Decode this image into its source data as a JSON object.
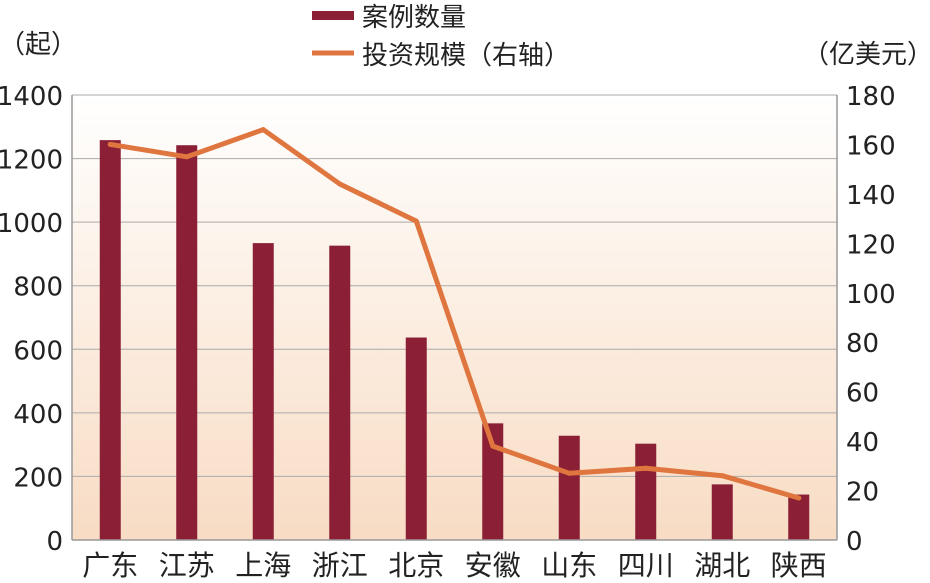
{
  "chart_data": {
    "type": "bar",
    "categories": [
      "广东",
      "江苏",
      "上海",
      "浙江",
      "北京",
      "安徽",
      "山东",
      "四川",
      "湖北",
      "陕西"
    ],
    "series": [
      {
        "name": "案例数量",
        "type": "bar",
        "axis": "left",
        "values": [
          1258,
          1242,
          934,
          926,
          637,
          367,
          328,
          303,
          175,
          143
        ]
      },
      {
        "name": "投资规模（右轴）",
        "type": "line",
        "axis": "right",
        "values": [
          160,
          155,
          166,
          144,
          129,
          38,
          27,
          29,
          26,
          17
        ]
      }
    ],
    "ylabel": "（起）",
    "ylabel_right": "（亿美元）",
    "ylim": [
      0,
      1400
    ],
    "ylim_right": [
      0,
      180
    ],
    "yticks": [
      0,
      200,
      400,
      600,
      800,
      1000,
      1200,
      1400
    ],
    "yticks_right": [
      0,
      20,
      40,
      60,
      80,
      100,
      120,
      140,
      160,
      180
    ],
    "grid": true,
    "legend_position": "top-center",
    "colors": {
      "bar": "#8b1f35",
      "line": "#e0763f",
      "grid": "#aaaaaa",
      "background_top": "#ffffff",
      "background_bottom": "#f8dcc4"
    }
  }
}
